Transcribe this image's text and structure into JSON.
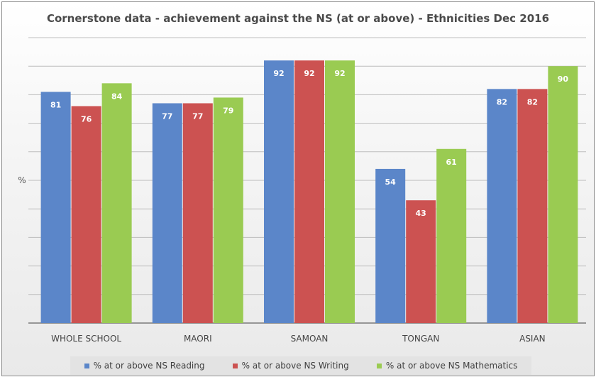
{
  "chart_data": {
    "type": "bar",
    "title": "Cornerstone data - achievement against the NS (at or above) - Ethnicities Dec 2016",
    "xlabel": "",
    "ylabel": "%",
    "ylim": [
      0,
      100
    ],
    "grid": true,
    "legend_position": "bottom",
    "categories": [
      "WHOLE SCHOOL",
      "MAORI",
      "SAMOAN",
      "TONGAN",
      "ASIAN"
    ],
    "series": [
      {
        "name": "% at or above NS Reading",
        "color": "#5b86c9",
        "values": [
          81,
          77,
          92,
          54,
          82
        ]
      },
      {
        "name": "% at or above NS Writing",
        "color": "#cc5251",
        "values": [
          76,
          77,
          92,
          43,
          82
        ]
      },
      {
        "name": "% at or above NS Mathematics",
        "color": "#9acb52",
        "values": [
          84,
          79,
          92,
          61,
          90
        ]
      }
    ]
  }
}
